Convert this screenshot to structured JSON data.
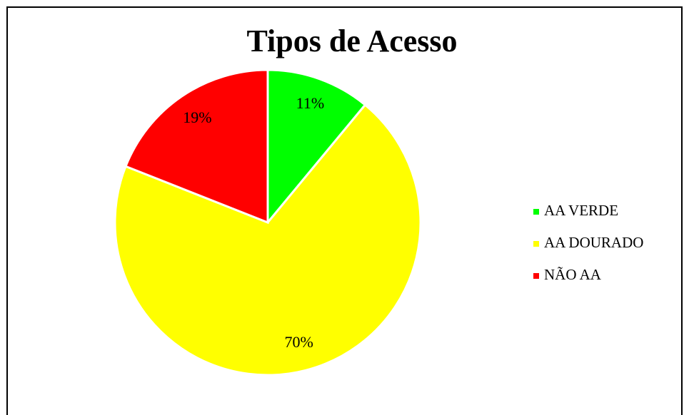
{
  "chart_data": {
    "type": "pie",
    "title": "Tipos de Acesso",
    "categories": [
      "AA VERDE",
      "AA DOURADO",
      "NÃO AA"
    ],
    "values": [
      11,
      70,
      19
    ],
    "value_labels": [
      "11%",
      "70%",
      "19%"
    ],
    "colors": [
      "#00ff00",
      "#ffff00",
      "#ff0000"
    ],
    "legend": "right"
  }
}
